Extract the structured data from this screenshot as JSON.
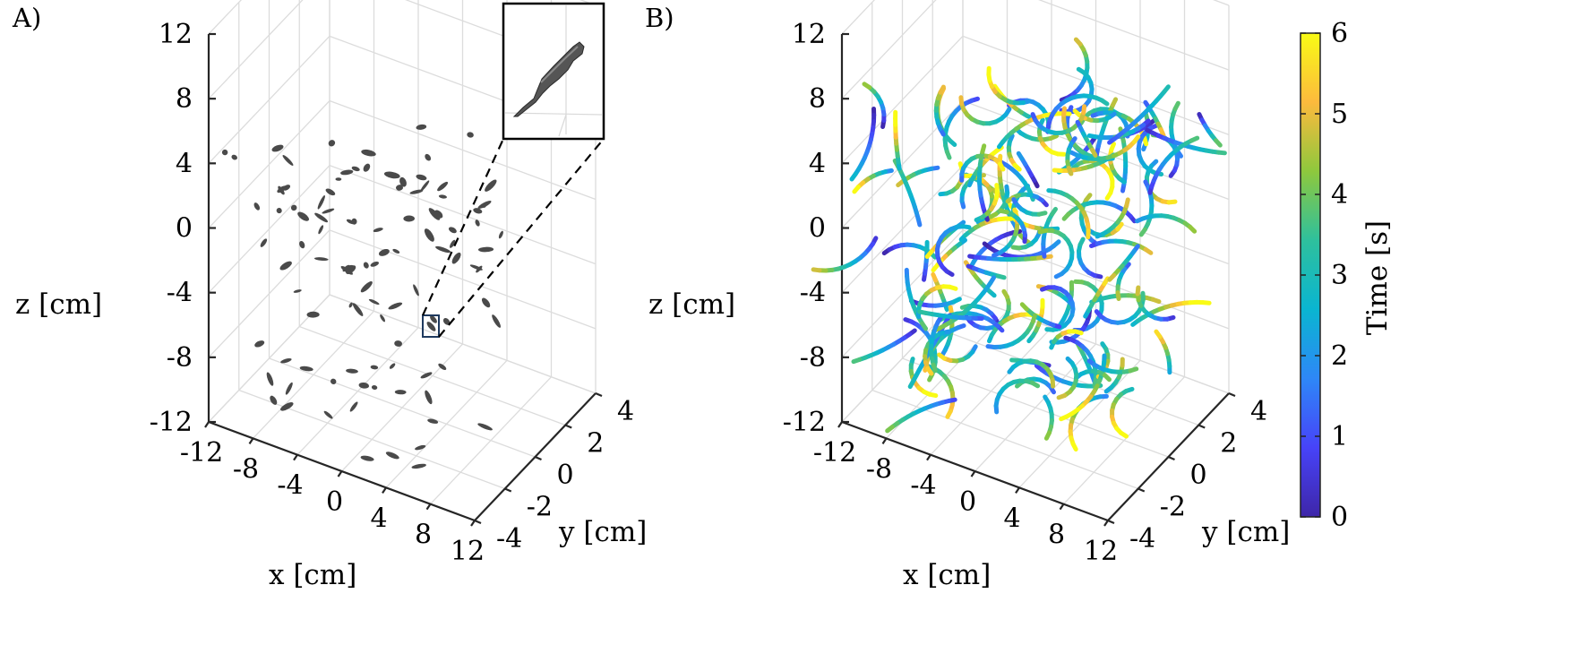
{
  "panels": {
    "a": {
      "label": "A)"
    },
    "b": {
      "label": "B)"
    }
  },
  "colorbar": {
    "label": "Time [s]",
    "ticks": [
      "0",
      "1",
      "2",
      "3",
      "4",
      "5",
      "6"
    ],
    "colormap": [
      "#3e26a8",
      "#4743f8",
      "#2e87f7",
      "#0ab5d1",
      "#2ec09d",
      "#8ec83d",
      "#fcba3d",
      "#f9fb15"
    ]
  },
  "chart_data": [
    {
      "type": "scatter",
      "panel": "A)",
      "title": "",
      "xlabel": "x [cm]",
      "ylabel": "y [cm]",
      "zlabel": "z [cm]",
      "x_ticks": [
        "-12",
        "-8",
        "-4",
        "0",
        "4",
        "8",
        "12"
      ],
      "y_ticks": [
        "-4",
        "-2",
        "0",
        "2",
        "4"
      ],
      "z_ticks": [
        "-12",
        "-8",
        "-4",
        "0",
        "4",
        "8",
        "12"
      ],
      "xlim": [
        -12,
        12
      ],
      "ylim": [
        -4,
        4
      ],
      "zlim": [
        -12,
        12
      ],
      "grid": true,
      "marker_color": "#4a4a4a",
      "inset": "zoomed view of one elongated particle",
      "approx_particle_count": 150
    },
    {
      "type": "line",
      "panel": "B)",
      "title": "",
      "xlabel": "x [cm]",
      "ylabel": "y [cm]",
      "zlabel": "z [cm]",
      "x_ticks": [
        "-12",
        "-8",
        "-4",
        "0",
        "4",
        "8",
        "12"
      ],
      "y_ticks": [
        "-4",
        "-2",
        "0",
        "2",
        "4"
      ],
      "z_ticks": [
        "-12",
        "-8",
        "-4",
        "0",
        "4",
        "8",
        "12"
      ],
      "xlim": [
        -12,
        12
      ],
      "ylim": [
        -4,
        4
      ],
      "zlim": [
        -12,
        12
      ],
      "grid": true,
      "color_encoding": "Time [s]",
      "clim": [
        0,
        6
      ],
      "approx_track_count": 180
    }
  ]
}
